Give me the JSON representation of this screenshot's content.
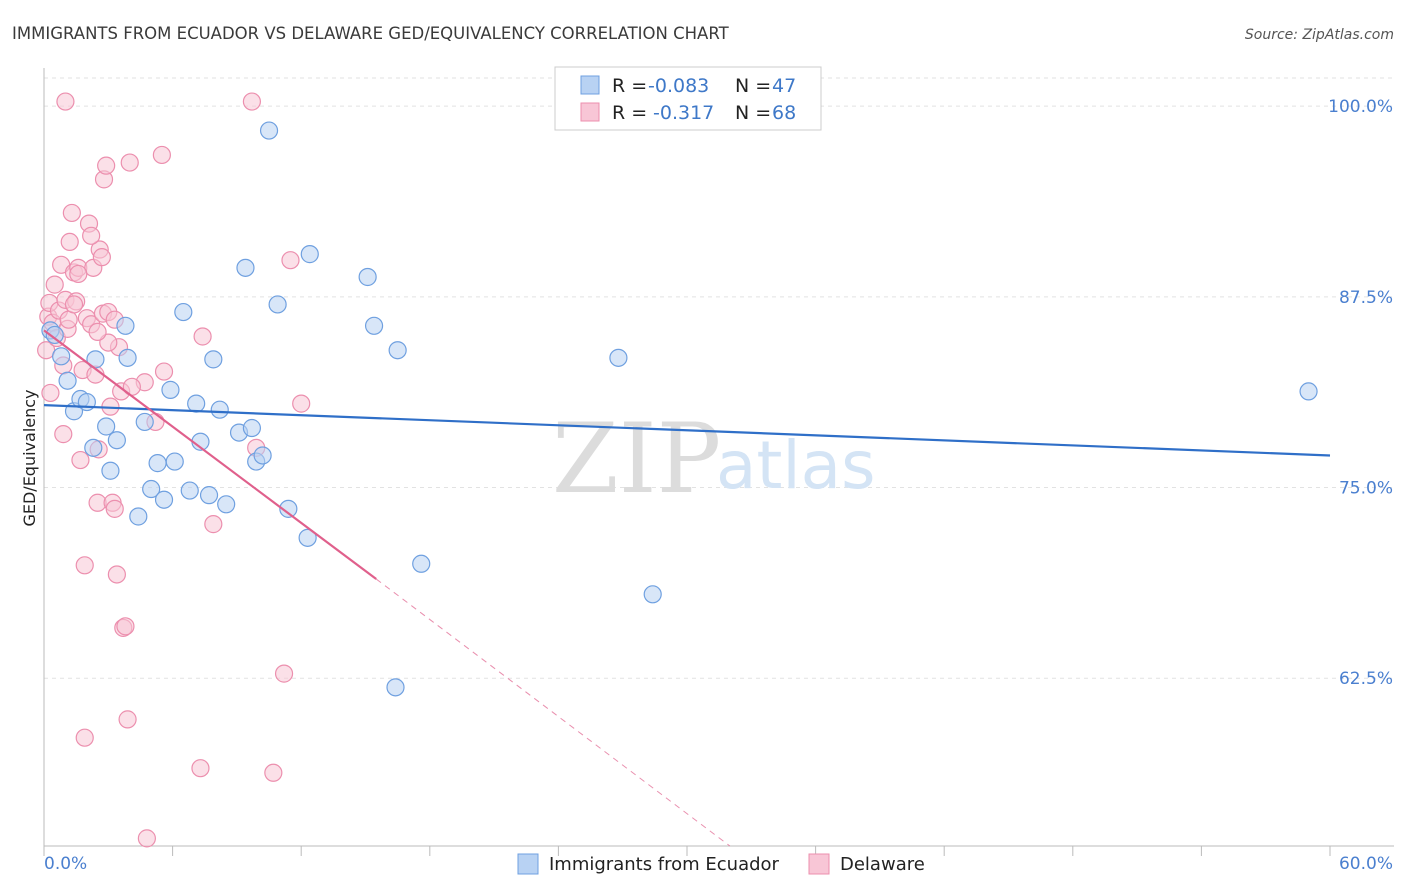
{
  "chart_data": {
    "type": "scatter",
    "title": "IMMIGRANTS FROM ECUADOR VS DELAWARE GED/EQUIVALENCY CORRELATION CHART",
    "source": "Source: ZipAtlas.com",
    "xlabel": "",
    "ylabel": "GED/Equivalency",
    "xlim": [
      0,
      60
    ],
    "ylim": [
      51.5,
      102.5
    ],
    "x_tick_labels": [
      {
        "value": 0,
        "label": "0.0%"
      },
      {
        "value": 60,
        "label": "60.0%"
      }
    ],
    "y_tick_labels": [
      {
        "value": 100,
        "label": "100.0%"
      },
      {
        "value": 87.5,
        "label": "87.5%"
      },
      {
        "value": 75,
        "label": "75.0%"
      },
      {
        "value": 62.5,
        "label": "62.5%"
      }
    ],
    "grid": true,
    "watermark": {
      "zip": "ZIP",
      "atlas": "atlas"
    },
    "legend": {
      "r_label": "R =",
      "n_label": "N =",
      "entries": [
        {
          "r": "-0.083",
          "n": "47"
        },
        {
          "r": "-0.317",
          "n": "68"
        }
      ]
    },
    "series": [
      {
        "name": "Immigrants from Ecuador",
        "color": "#6fa0e0",
        "fill": "#b8d2f3",
        "line_color": "#2f6fc8",
        "trend": {
          "x0": 0,
          "y0": 80.4,
          "x1": 60,
          "y1": 77.1
        },
        "points": [
          [
            0.3,
            85.3
          ],
          [
            0.5,
            85.0
          ],
          [
            0.8,
            83.6
          ],
          [
            1.1,
            82.0
          ],
          [
            1.4,
            80.0
          ],
          [
            1.7,
            80.8
          ],
          [
            2.0,
            80.6
          ],
          [
            2.3,
            77.6
          ],
          [
            2.4,
            83.4
          ],
          [
            2.9,
            79.0
          ],
          [
            3.1,
            76.1
          ],
          [
            3.4,
            78.1
          ],
          [
            3.8,
            85.6
          ],
          [
            3.9,
            83.5
          ],
          [
            4.4,
            73.1
          ],
          [
            4.7,
            79.3
          ],
          [
            5.0,
            74.9
          ],
          [
            5.3,
            76.6
          ],
          [
            5.6,
            74.2
          ],
          [
            5.9,
            81.4
          ],
          [
            6.1,
            76.7
          ],
          [
            6.5,
            86.5
          ],
          [
            6.8,
            74.8
          ],
          [
            7.1,
            80.5
          ],
          [
            7.3,
            78.0
          ],
          [
            7.7,
            74.5
          ],
          [
            7.9,
            83.4
          ],
          [
            8.2,
            80.1
          ],
          [
            8.5,
            73.9
          ],
          [
            9.1,
            78.6
          ],
          [
            9.4,
            89.4
          ],
          [
            9.7,
            78.9
          ],
          [
            9.9,
            76.7
          ],
          [
            10.2,
            77.1
          ],
          [
            10.5,
            98.4
          ],
          [
            10.9,
            87.0
          ],
          [
            11.4,
            73.6
          ],
          [
            12.3,
            71.7
          ],
          [
            12.4,
            90.3
          ],
          [
            15.1,
            88.8
          ],
          [
            15.4,
            85.6
          ],
          [
            16.4,
            61.9
          ],
          [
            16.5,
            84.0
          ],
          [
            17.6,
            70.0
          ],
          [
            26.8,
            83.5
          ],
          [
            28.4,
            68.0
          ],
          [
            59.0,
            81.3
          ]
        ]
      },
      {
        "name": "Delaware",
        "color": "#ec8fae",
        "fill": "#f8c6d6",
        "line_color": "#e0608c",
        "trend": {
          "x0": 0,
          "y0": 85.3,
          "x1": 15.5,
          "y1": 69.0
        },
        "trend_dashed": {
          "x0": 15.5,
          "y0": 69.0,
          "x1": 32.0,
          "y1": 51.5
        },
        "points": [
          [
            0.1,
            84.0
          ],
          [
            0.2,
            86.2
          ],
          [
            0.25,
            87.1
          ],
          [
            0.3,
            81.2
          ],
          [
            0.4,
            85.8
          ],
          [
            0.5,
            88.3
          ],
          [
            0.6,
            84.8
          ],
          [
            0.7,
            86.6
          ],
          [
            0.8,
            89.6
          ],
          [
            0.9,
            78.5
          ],
          [
            1.0,
            87.3
          ],
          [
            1.1,
            85.4
          ],
          [
            1.15,
            86.0
          ],
          [
            1.2,
            91.1
          ],
          [
            1.3,
            93.0
          ],
          [
            1.4,
            89.1
          ],
          [
            1.5,
            87.2
          ],
          [
            1.6,
            89.4
          ],
          [
            1.7,
            76.8
          ],
          [
            1.8,
            82.7
          ],
          [
            1.9,
            69.9
          ],
          [
            2.0,
            86.1
          ],
          [
            2.1,
            92.3
          ],
          [
            2.2,
            85.7
          ],
          [
            2.3,
            89.4
          ],
          [
            2.4,
            82.4
          ],
          [
            2.5,
            74.0
          ],
          [
            2.55,
            77.5
          ],
          [
            2.6,
            90.6
          ],
          [
            2.7,
            90.1
          ],
          [
            2.75,
            86.4
          ],
          [
            2.8,
            95.2
          ],
          [
            2.9,
            96.1
          ],
          [
            3.0,
            86.5
          ],
          [
            3.1,
            80.3
          ],
          [
            3.2,
            74.0
          ],
          [
            3.3,
            73.6
          ],
          [
            3.4,
            69.3
          ],
          [
            3.5,
            84.2
          ],
          [
            3.6,
            81.3
          ],
          [
            3.7,
            65.8
          ],
          [
            3.8,
            65.9
          ],
          [
            3.9,
            59.8
          ],
          [
            4.0,
            96.3
          ],
          [
            4.7,
            81.9
          ],
          [
            4.8,
            52.0
          ],
          [
            5.2,
            79.3
          ],
          [
            5.5,
            96.8
          ],
          [
            5.6,
            82.6
          ],
          [
            7.3,
            56.6
          ],
          [
            7.4,
            84.9
          ],
          [
            7.9,
            72.6
          ],
          [
            9.7,
            100.3
          ],
          [
            9.9,
            77.6
          ],
          [
            10.7,
            56.3
          ],
          [
            11.2,
            62.8
          ],
          [
            11.5,
            89.9
          ],
          [
            12.0,
            80.5
          ],
          [
            1.0,
            100.3
          ],
          [
            1.9,
            58.6
          ],
          [
            3.0,
            84.5
          ],
          [
            2.2,
            91.5
          ],
          [
            1.4,
            87.0
          ],
          [
            0.9,
            83.0
          ],
          [
            4.1,
            81.6
          ],
          [
            1.6,
            89.0
          ],
          [
            2.5,
            85.2
          ],
          [
            3.3,
            86.0
          ]
        ]
      }
    ],
    "bottom_legend": [
      "Immigrants from Ecuador",
      "Delaware"
    ]
  }
}
